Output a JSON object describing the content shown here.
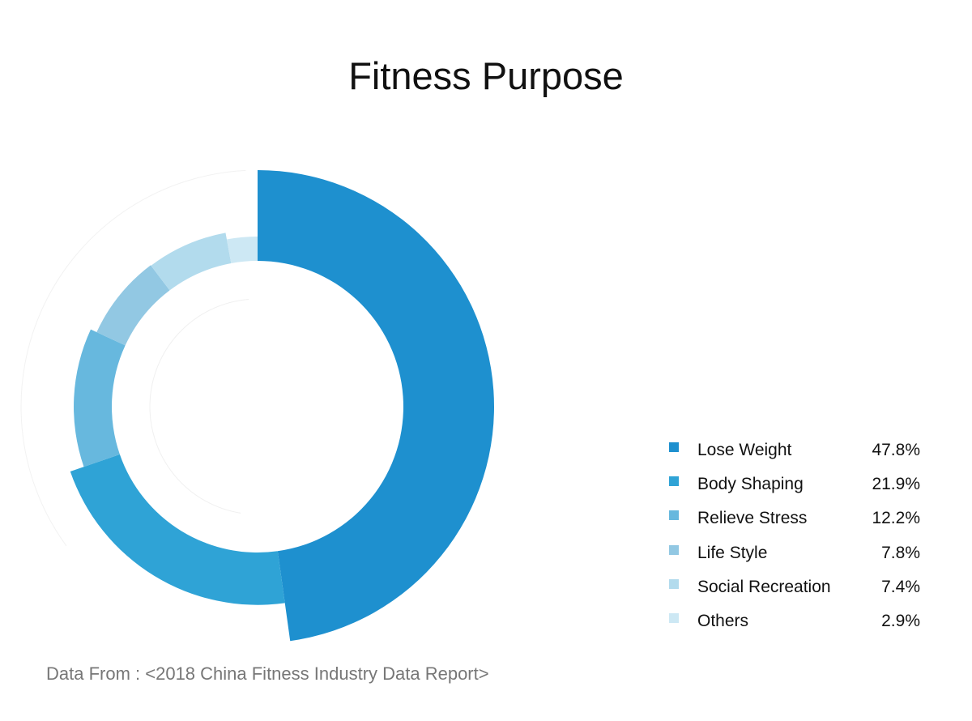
{
  "chart_data": {
    "type": "pie",
    "title": "Fitness Purpose",
    "categories": [
      "Lose Weight",
      "Body Shaping",
      "Relieve Stress",
      "Life Style",
      "Social Recreation",
      "Others"
    ],
    "values": [
      47.8,
      21.9,
      12.2,
      7.8,
      7.4,
      2.9
    ],
    "value_labels": [
      "47.8%",
      "21.9%",
      "12.2%",
      "7.8%",
      "7.4%",
      "2.9%"
    ],
    "colors": [
      "#1e90cf",
      "#2fa3d6",
      "#67b8de",
      "#92c8e3",
      "#b2dbed",
      "#cde8f4"
    ],
    "style": "radial donut (segment outer radius decreases with size)",
    "legend": "right",
    "source": "Data From : <2018 China Fitness Industry Data Report>"
  }
}
